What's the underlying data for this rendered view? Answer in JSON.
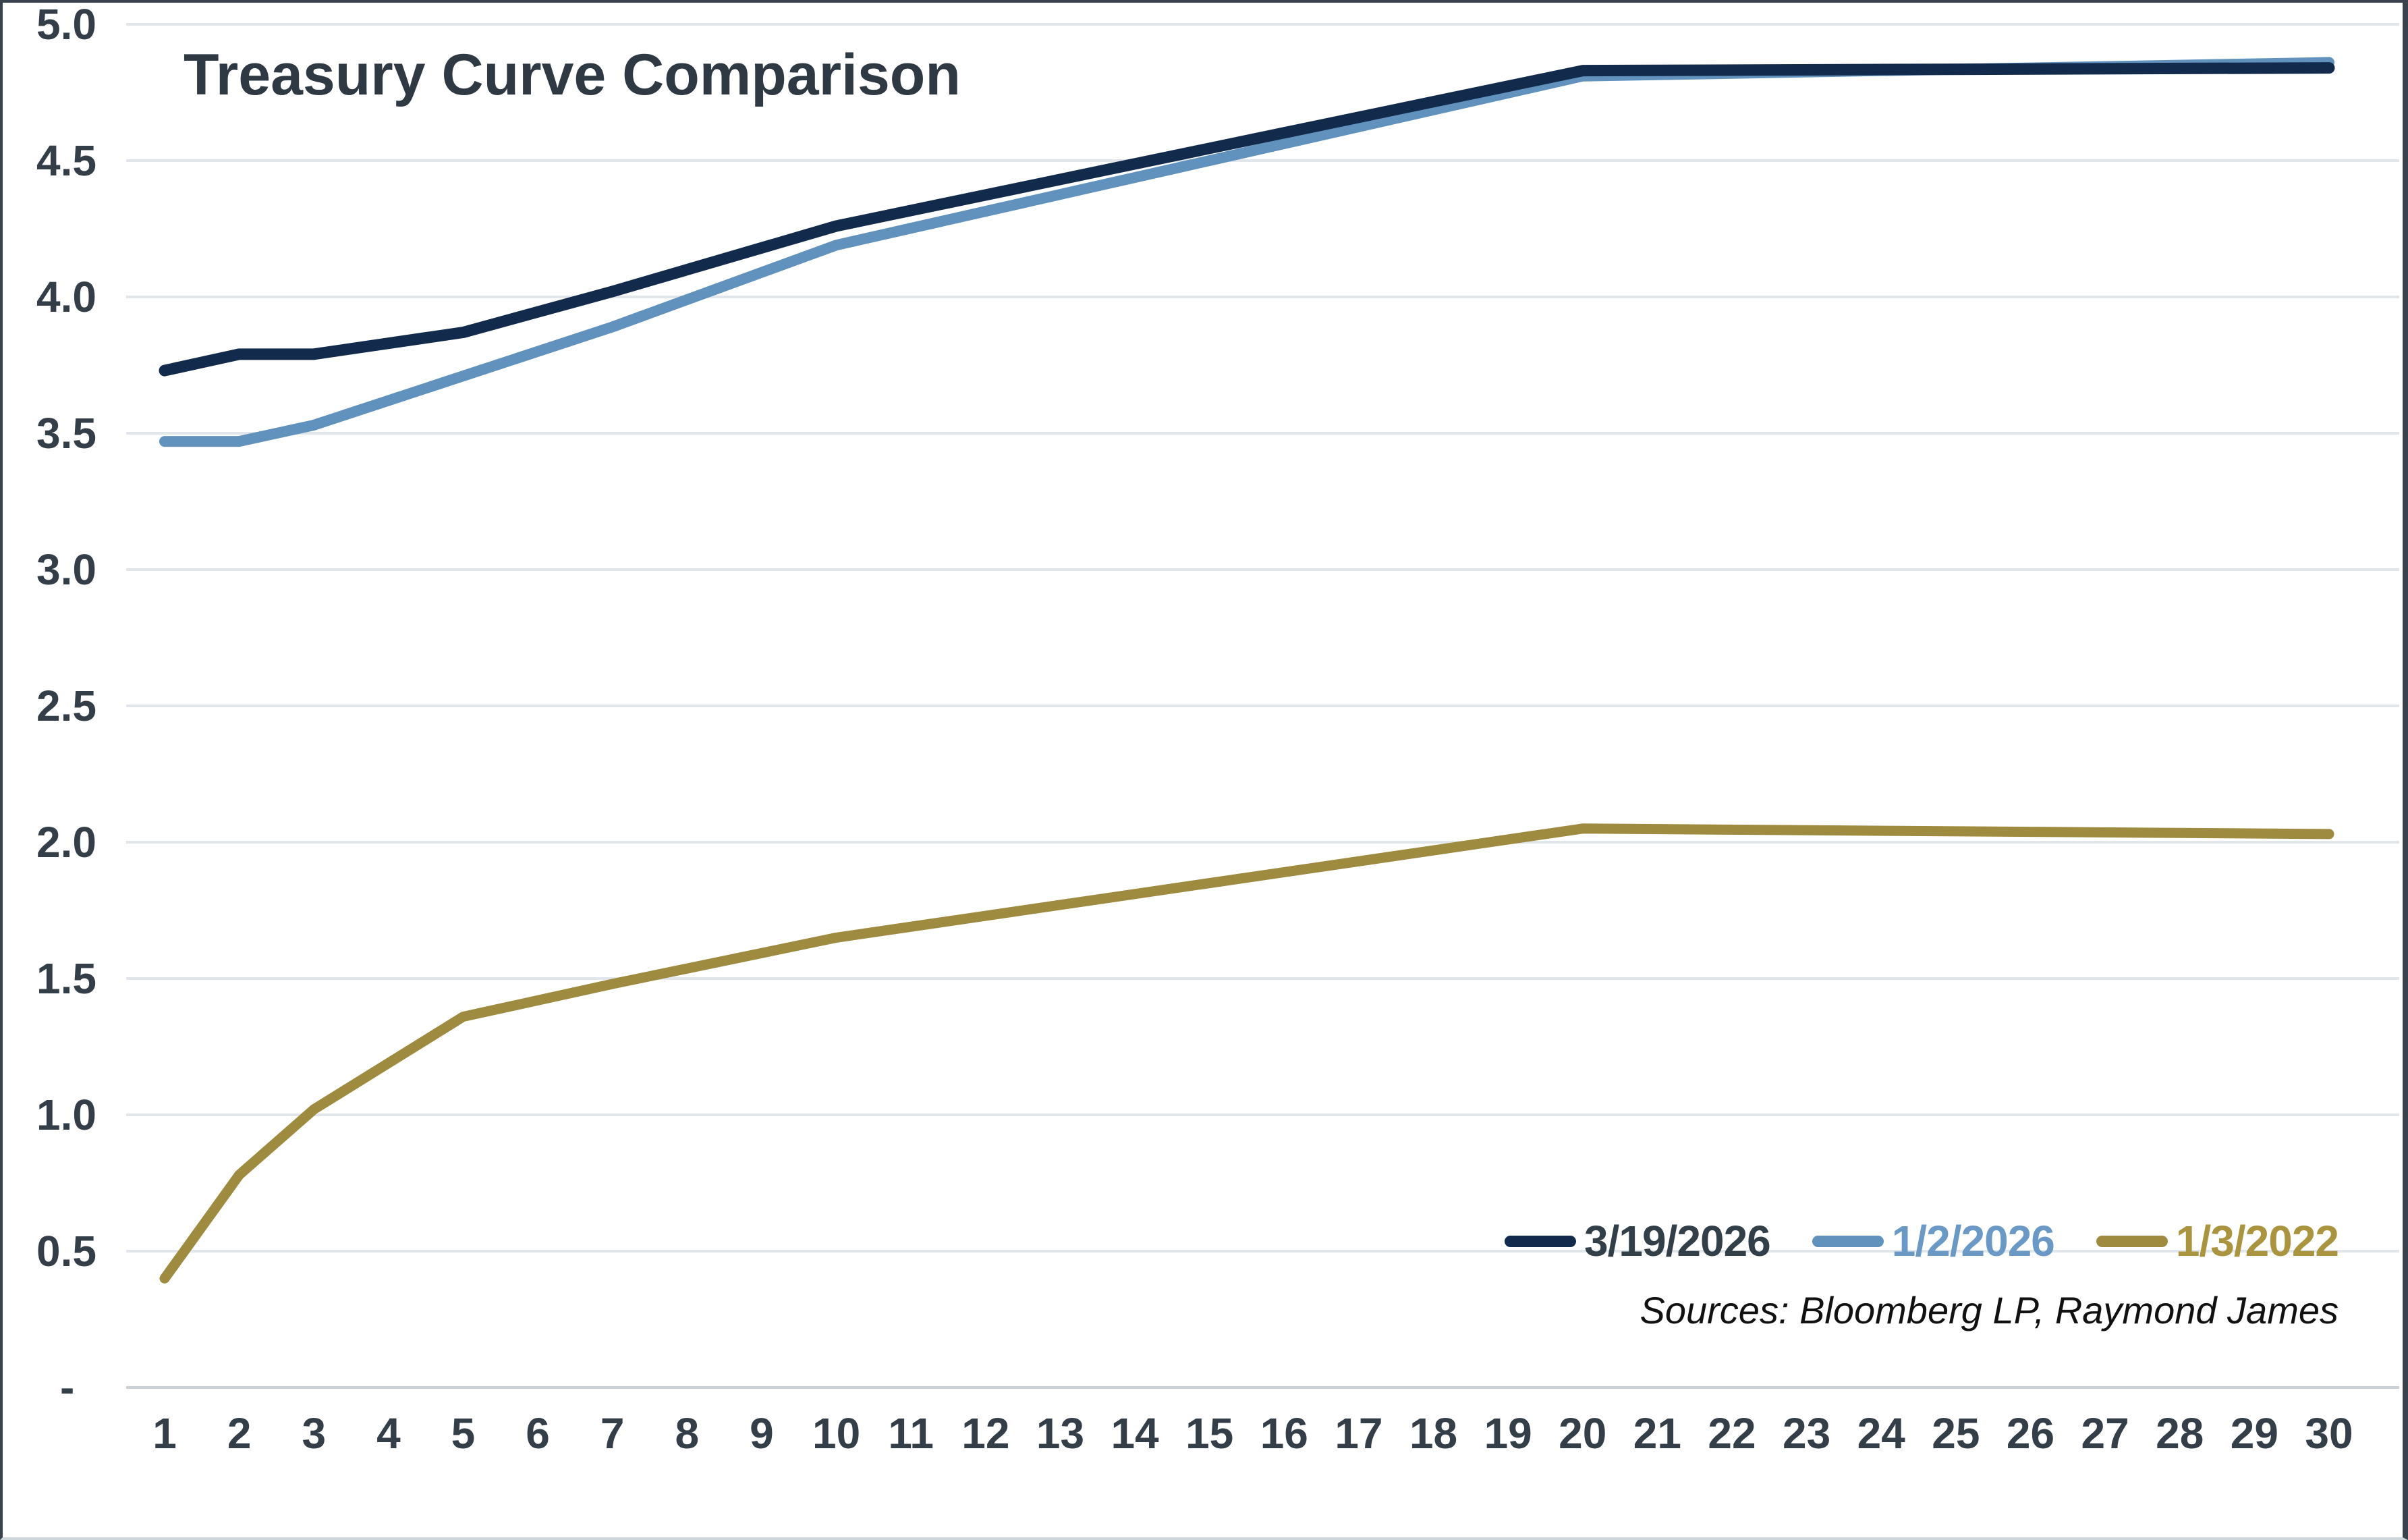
{
  "title": {
    "text": "Treasury Curve Comparison"
  },
  "source": {
    "text": "Sources: Bloomberg LP, Raymond James"
  },
  "colors": {
    "title": "#2f3943",
    "axis_label": "#333e48",
    "gridline": "#e0e6ea",
    "zero_axis_line": "#c8d2d8",
    "frame": "#39434d",
    "background": "#ffffff"
  },
  "y_axis": {
    "labels": [
      "5.0",
      "4.5",
      "4.0",
      "3.5",
      "3.0",
      "2.5",
      "2.0",
      "1.5",
      "1.0",
      "0.5",
      "-"
    ],
    "values": [
      5.0,
      4.5,
      4.0,
      3.5,
      3.0,
      2.5,
      2.0,
      1.5,
      1.0,
      0.5,
      0
    ]
  },
  "x_axis": {
    "labels": [
      "1",
      "2",
      "3",
      "4",
      "5",
      "6",
      "7",
      "8",
      "9",
      "10",
      "11",
      "12",
      "13",
      "14",
      "15",
      "16",
      "17",
      "18",
      "19",
      "20",
      "21",
      "22",
      "23",
      "24",
      "25",
      "26",
      "27",
      "28",
      "29",
      "30"
    ]
  },
  "chart_data": {
    "type": "line",
    "title": "Treasury Curve Comparison",
    "x_points": [
      1,
      2,
      3,
      5,
      7,
      10,
      20,
      30
    ],
    "xlim": [
      1,
      30
    ],
    "ylim": [
      0,
      5
    ],
    "ytick_step": 0.5,
    "grid": "horizontal",
    "legend_position": "bottom-right-inside",
    "series": [
      {
        "name": "3/19/2026",
        "line_color": "#122a4c",
        "label_color": "#333f48",
        "stroke_width": 17,
        "values": [
          3.73,
          3.79,
          3.79,
          3.87,
          4.02,
          4.26,
          4.83,
          4.84
        ]
      },
      {
        "name": "1/2/2026",
        "line_color": "#6191bd",
        "label_color": "#6b99c5",
        "stroke_width": 16,
        "values": [
          3.47,
          3.47,
          3.53,
          3.71,
          3.89,
          4.19,
          4.81,
          4.86
        ]
      },
      {
        "name": "1/3/2022",
        "line_color": "#9e8b3f",
        "label_color": "#aa943f",
        "stroke_width": 15,
        "values": [
          0.4,
          0.78,
          1.02,
          1.36,
          1.48,
          1.65,
          2.05,
          2.03
        ]
      }
    ]
  }
}
